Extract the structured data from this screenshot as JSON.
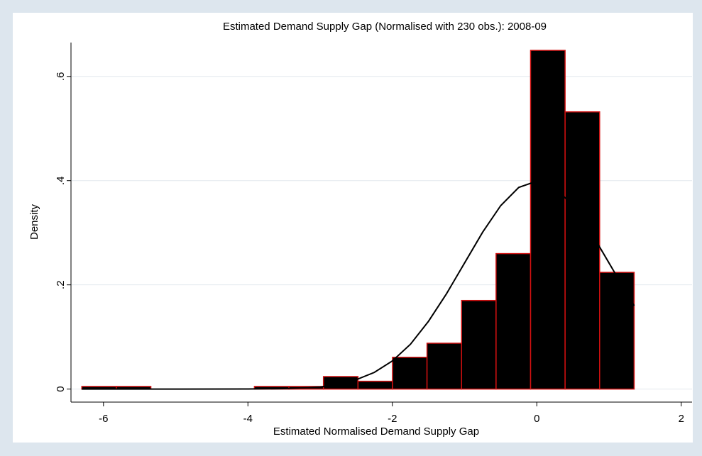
{
  "chart_data": {
    "type": "histogram",
    "title": "Estimated Demand Supply Gap (Normalised with 230 obs.): 2008-09",
    "x_label": "Estimated Normalised Demand Supply Gap",
    "y_label": "Density",
    "bins": [
      -6.3,
      -5.822,
      -5.344,
      -4.866,
      -4.388,
      -3.91,
      -3.432,
      -2.954,
      -2.476,
      -1.998,
      -1.52,
      -1.042,
      -0.564,
      -0.086,
      0.392,
      0.87,
      1.348
    ],
    "values": [
      0.005,
      0.005,
      0,
      0,
      0,
      0.005,
      0.005,
      0.024,
      0.015,
      0.061,
      0.088,
      0.17,
      0.26,
      0.65,
      0.532,
      0.224
    ],
    "color": "#000000",
    "edge_color": "#d01010",
    "curve": {
      "color": "#000000",
      "x": [
        -6.3,
        -4,
        -3.5,
        -3,
        -2.75,
        -2.5,
        -2.25,
        -2,
        -1.75,
        -1.5,
        -1.25,
        -1,
        -0.75,
        -0.5,
        -0.25,
        0,
        0.25,
        0.5,
        0.75,
        1,
        1.25,
        1.348
      ],
      "values": [
        0,
        0.0001,
        0.0009,
        0.004,
        0.009,
        0.018,
        0.032,
        0.054,
        0.086,
        0.13,
        0.183,
        0.242,
        0.301,
        0.352,
        0.387,
        0.399,
        0.387,
        0.352,
        0.301,
        0.242,
        0.183,
        0.16
      ]
    },
    "xlim": [
      -6.45,
      2.15
    ],
    "xticks": [
      -6,
      -4,
      -2,
      0,
      2
    ],
    "ylim": [
      -0.025,
      0.665
    ],
    "yticks": [
      {
        "value": 0,
        "label": "0"
      },
      {
        "value": 0.2,
        "label": ".2"
      },
      {
        "value": 0.4,
        "label": ".4"
      },
      {
        "value": 0.6,
        "label": ".6"
      }
    ],
    "grid": true
  }
}
